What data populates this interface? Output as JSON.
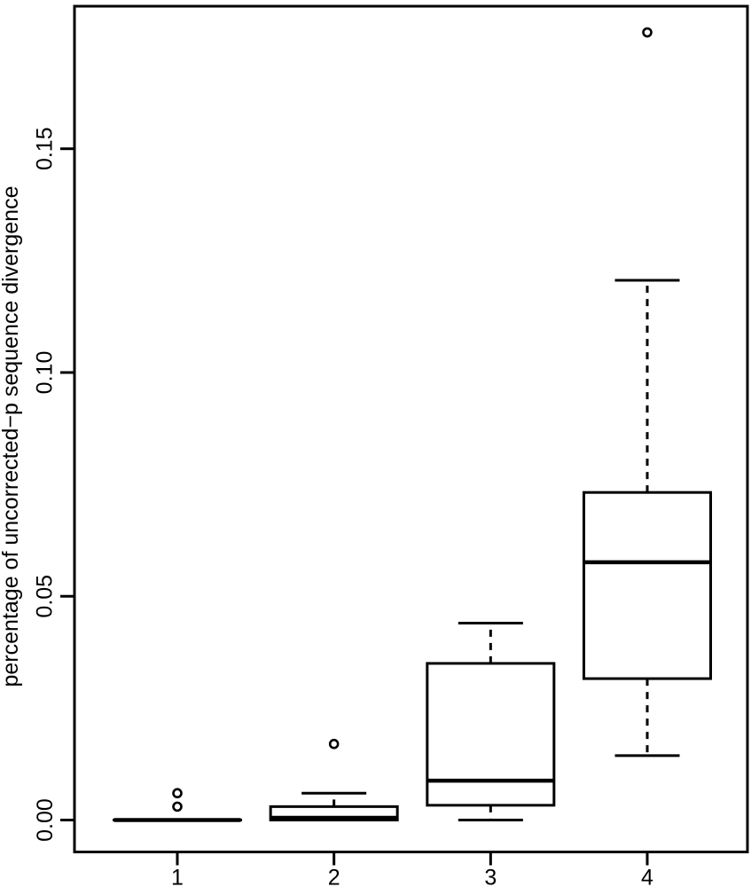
{
  "chart_data": {
    "type": "boxplot",
    "title": "",
    "xlabel": "",
    "ylabel": "percentage of uncorrected−p sequence divergence",
    "grid": false,
    "legend": false,
    "background_color": "#ffffff",
    "line_color": "#000000",
    "ylim": [
      -0.0071,
      0.1819
    ],
    "y_ticks": [
      {
        "value": 0.0,
        "label": "0.00"
      },
      {
        "value": 0.05,
        "label": "0.05"
      },
      {
        "value": 0.1,
        "label": "0.10"
      },
      {
        "value": 0.15,
        "label": "0.15"
      }
    ],
    "x_ticks": [
      "1",
      "2",
      "3",
      "4"
    ],
    "groups": [
      {
        "x": 1,
        "label": "1",
        "whisker_low": 0.0,
        "q1": 0.0,
        "median": 0.0,
        "q3": 0.0,
        "whisker_high": 0.0,
        "outliers": [
          0.003,
          0.006
        ]
      },
      {
        "x": 2,
        "label": "2",
        "whisker_low": 0.0,
        "q1": 0.0,
        "median": 0.0005,
        "q3": 0.003,
        "whisker_high": 0.006,
        "outliers": [
          0.017
        ]
      },
      {
        "x": 3,
        "label": "3",
        "whisker_low": 0.0,
        "q1": 0.0033,
        "median": 0.0088,
        "q3": 0.035,
        "whisker_high": 0.044,
        "outliers": []
      },
      {
        "x": 4,
        "label": "4",
        "whisker_low": 0.0144,
        "q1": 0.0316,
        "median": 0.0576,
        "q3": 0.0732,
        "whisker_high": 0.1206,
        "outliers": [
          0.176
        ]
      }
    ]
  }
}
